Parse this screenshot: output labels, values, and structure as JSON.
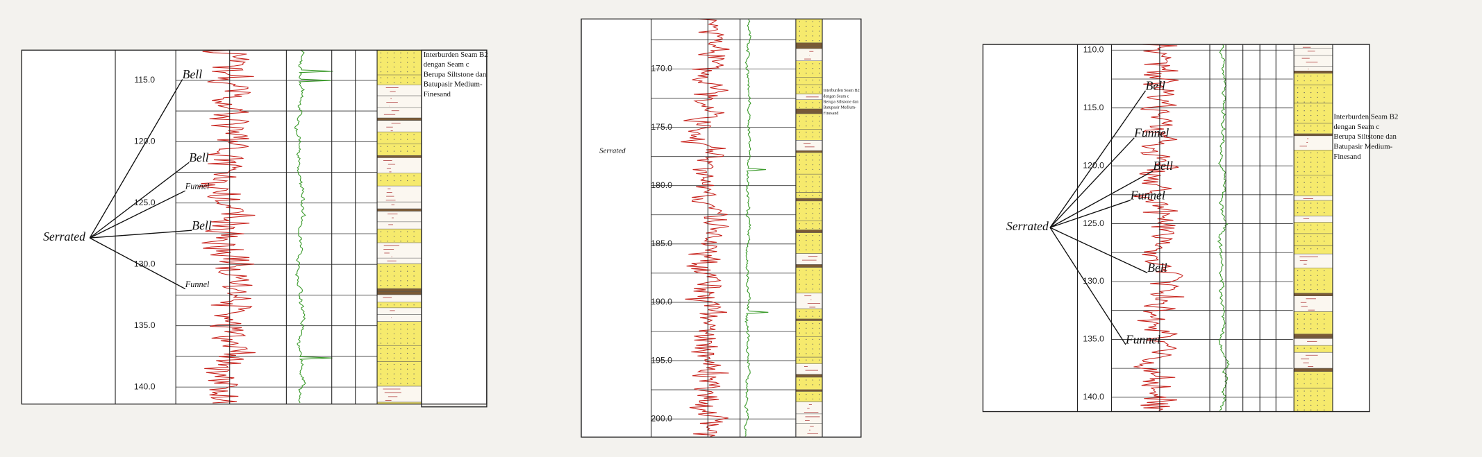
{
  "panels": [
    {
      "depth_labels": [
        "115.0",
        "120.0",
        "125.0",
        "130.0",
        "135.0",
        "140.0"
      ],
      "pattern_label": "Serrated",
      "annotations": [
        "Bell",
        "Bell",
        "Funnel",
        "Bell",
        "Funnel"
      ],
      "description": [
        "Interburden Seam B2",
        "dengan Seam c",
        "Berupa Siltstone dan",
        "Batupasir Medium-",
        "Finesand"
      ]
    },
    {
      "depth_labels": [
        "170.0",
        "175.0",
        "180.0",
        "185.0",
        "190.0",
        "195.0",
        "200.0"
      ],
      "pattern_label": "Serrated",
      "annotations": [],
      "description": [
        "Interburden Seam B2",
        "dengan Seam c",
        "Berupa Siltstone dan",
        "Batupasir Medium-",
        "Finesand"
      ]
    },
    {
      "depth_labels": [
        "110.0",
        "115.0",
        "120.0",
        "125.0",
        "130.0",
        "135.0",
        "140.0"
      ],
      "pattern_label": "Serrated",
      "annotations": [
        "Bell",
        "Funnel",
        "Bell",
        "Funnel",
        "Bell",
        "Funnel"
      ],
      "description": [
        "Interburden Seam B2",
        "dengan Seam c",
        "Berupa Siltstone dan",
        "Batupasir Medium-",
        "Finesand"
      ]
    }
  ]
}
